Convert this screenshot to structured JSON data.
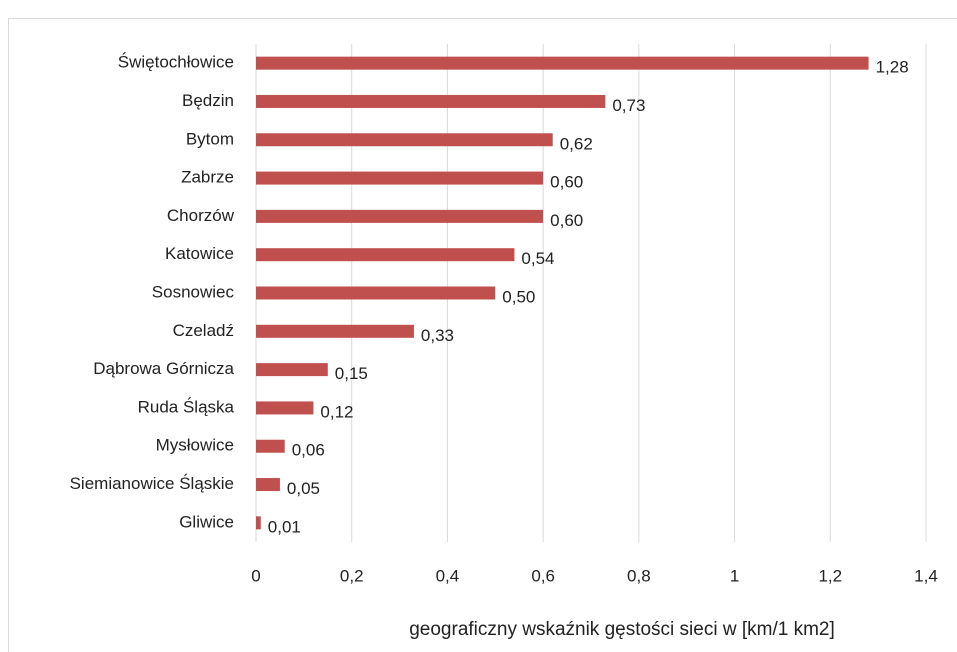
{
  "chart_data": {
    "type": "bar",
    "orientation": "horizontal",
    "categories": [
      "Świętochłowice",
      "Będzin",
      "Bytom",
      "Zabrze",
      "Chorzów",
      "Katowice",
      "Sosnowiec",
      "Czeladź",
      "Dąbrowa Górnicza",
      "Ruda Śląska",
      "Mysłowice",
      "Siemianowice Śląskie",
      "Gliwice"
    ],
    "values": [
      1.28,
      0.73,
      0.62,
      0.6,
      0.6,
      0.54,
      0.5,
      0.33,
      0.15,
      0.12,
      0.06,
      0.05,
      0.01
    ],
    "value_labels": [
      "1,28",
      "0,73",
      "0,62",
      "0,60",
      "0,60",
      "0,54",
      "0,50",
      "0,33",
      "0,15",
      "0,12",
      "0,06",
      "0,05",
      "0,01"
    ],
    "color": "#c0504d",
    "xlabel": "geograficzny wskaźnik gęstości sieci w [km/1 km2]",
    "xlim": [
      0,
      1.4
    ],
    "xticks": [
      0,
      {
        "value": 0.2,
        "label": "0,2"
      },
      {
        "value": 0.4,
        "label": "0,4"
      },
      {
        "value": 0.6,
        "label": "0,6"
      },
      {
        "value": 0.8,
        "label": "0,8"
      },
      1,
      {
        "value": 1.2,
        "label": "1,2"
      },
      {
        "value": 1.4,
        "label": "1,4"
      }
    ],
    "grid": true
  }
}
